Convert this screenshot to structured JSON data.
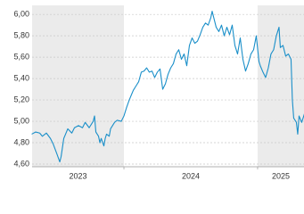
{
  "chart_data": {
    "type": "line",
    "x": [
      2023.31,
      2023.34,
      2023.37,
      2023.39,
      2023.42,
      2023.45,
      2023.47,
      2023.5,
      2023.52,
      2023.53,
      2023.55,
      2023.58,
      2023.61,
      2023.63,
      2023.66,
      2023.69,
      2023.71,
      2023.74,
      2023.77,
      2023.78,
      2023.79,
      2023.81,
      2023.82,
      2023.83,
      2023.85,
      2023.86,
      2023.87,
      2023.89,
      2023.9,
      2023.93,
      2023.95,
      2023.98,
      2024.0,
      2024.02,
      2024.04,
      2024.06,
      2024.07,
      2024.09,
      2024.11,
      2024.13,
      2024.15,
      2024.17,
      2024.19,
      2024.21,
      2024.23,
      2024.25,
      2024.27,
      2024.29,
      2024.31,
      2024.33,
      2024.35,
      2024.37,
      2024.39,
      2024.41,
      2024.43,
      2024.45,
      2024.47,
      2024.49,
      2024.51,
      2024.53,
      2024.55,
      2024.57,
      2024.59,
      2024.61,
      2024.63,
      2024.65,
      2024.66,
      2024.67,
      2024.69,
      2024.71,
      2024.73,
      2024.75,
      2024.77,
      2024.79,
      2024.81,
      2024.83,
      2024.85,
      2024.87,
      2024.89,
      2024.91,
      2024.93,
      2024.95,
      2024.97,
      2024.99,
      2025.01,
      2025.02,
      2025.04,
      2025.06,
      2025.08,
      2025.1,
      2025.12,
      2025.14,
      2025.16,
      2025.17,
      2025.19,
      2025.21,
      2025.23,
      2025.25,
      2025.26,
      2025.27,
      2025.29,
      2025.3,
      2025.31,
      2025.33,
      2025.35
    ],
    "series": [
      {
        "color": "#1a8fc9",
        "values": [
          4.88,
          4.9,
          4.89,
          4.86,
          4.89,
          4.84,
          4.79,
          4.69,
          4.62,
          4.67,
          4.84,
          4.93,
          4.89,
          4.94,
          4.96,
          4.94,
          4.99,
          4.94,
          5.0,
          5.05,
          4.9,
          4.86,
          4.8,
          4.84,
          4.77,
          4.84,
          4.88,
          4.86,
          4.93,
          4.99,
          5.01,
          5.0,
          5.05,
          5.13,
          5.2,
          5.26,
          5.29,
          5.33,
          5.37,
          5.46,
          5.47,
          5.5,
          5.46,
          5.47,
          5.41,
          5.46,
          5.49,
          5.3,
          5.35,
          5.44,
          5.5,
          5.54,
          5.63,
          5.67,
          5.58,
          5.63,
          5.52,
          5.71,
          5.78,
          5.73,
          5.75,
          5.81,
          5.88,
          5.92,
          5.9,
          5.97,
          6.03,
          5.98,
          5.88,
          5.84,
          5.9,
          5.8,
          5.88,
          5.81,
          5.9,
          5.71,
          5.63,
          5.78,
          5.58,
          5.47,
          5.54,
          5.63,
          5.67,
          5.8,
          5.56,
          5.52,
          5.46,
          5.41,
          5.5,
          5.63,
          5.67,
          5.8,
          5.88,
          5.69,
          5.71,
          5.61,
          5.63,
          5.58,
          5.2,
          5.03,
          4.99,
          4.88,
          5.05,
          4.99,
          5.07
        ]
      }
    ],
    "xlim": [
      2023.313,
      2025.347
    ],
    "xticks": [
      2023,
      2024,
      2025
    ],
    "ylim": [
      4.575,
      6.085
    ],
    "yticks": [
      {
        "value": 4.6,
        "label": "4,60"
      },
      {
        "value": 4.8,
        "label": "4,80"
      },
      {
        "value": 5.0,
        "label": "5,00"
      },
      {
        "value": 5.2,
        "label": "5,20"
      },
      {
        "value": 5.4,
        "label": "5,40"
      },
      {
        "value": 5.6,
        "label": "5,60"
      },
      {
        "value": 5.8,
        "label": "5,80"
      },
      {
        "value": 6.0,
        "label": "6,00"
      }
    ],
    "grid": true,
    "shaded_years": true
  }
}
